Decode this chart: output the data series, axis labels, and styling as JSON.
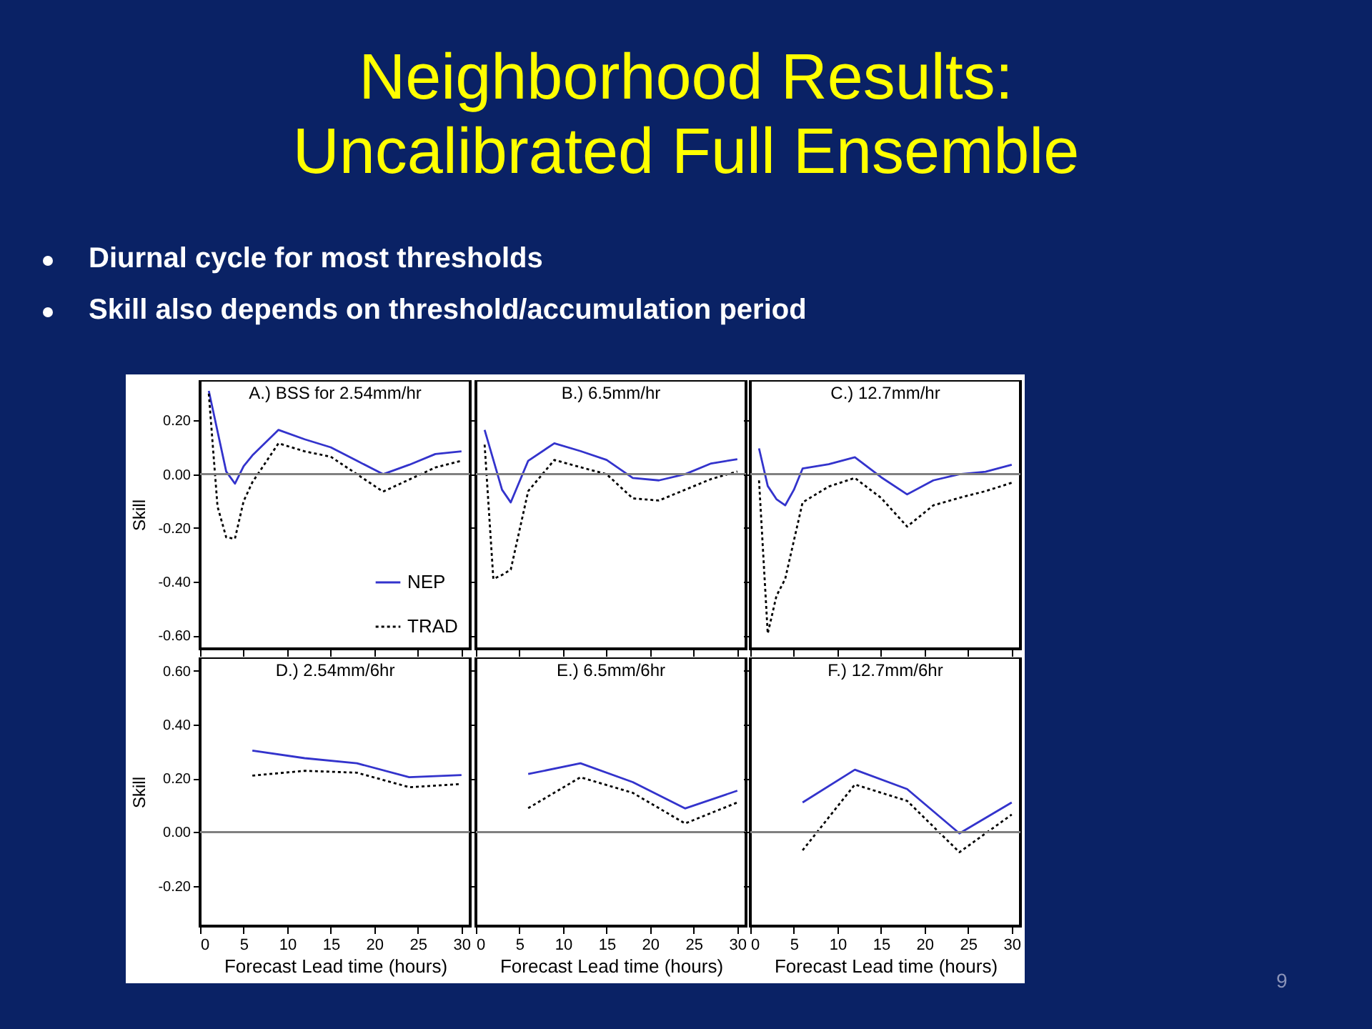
{
  "chart_data": [
    {
      "type": "other",
      "title": "Neighborhood Results: Uncalibrated Full Ensemble",
      "annotations": [
        "Diurnal cycle for most thresholds",
        "Skill also depends on threshold/accumulation period",
        "9"
      ]
    },
    {
      "type": "line",
      "title": "A.) BSS for 2.54mm/hr",
      "ylabel": "Skill",
      "xlim": [
        0,
        31
      ],
      "xticks": [
        0,
        5,
        10,
        15,
        20,
        25,
        30
      ],
      "ylim": [
        -0.65,
        0.35
      ],
      "yticks": [
        {
          "value": -0.6,
          "label": "-0.60"
        },
        {
          "value": -0.4,
          "label": "-0.40"
        },
        {
          "value": -0.2,
          "label": "-0.20"
        },
        {
          "value": 0,
          "label": "0.00"
        },
        {
          "value": 0.2,
          "label": "0.20"
        }
      ],
      "tick_labels": "y",
      "legend": "bottom right",
      "ref_lines": [
        {
          "axis": "y",
          "value": 0,
          "color": "#808080"
        }
      ],
      "series": [
        {
          "name": "NEP",
          "color": "#3333cc",
          "line_style": "solid",
          "x": [
            1,
            3,
            4,
            5,
            6,
            9,
            12,
            15,
            18,
            21,
            24,
            27,
            30
          ],
          "values": [
            0.31,
            0.01,
            -0.035,
            0.03,
            0.07,
            0.165,
            0.13,
            0.1,
            0.05,
            0.0,
            0.035,
            0.075,
            0.085
          ]
        },
        {
          "name": "TRAD",
          "color": "#000000",
          "line_style": "dotted",
          "x": [
            1,
            2,
            3,
            4,
            5,
            6,
            9,
            12,
            15,
            18,
            21,
            24,
            27,
            30
          ],
          "values": [
            0.3,
            -0.12,
            -0.235,
            -0.24,
            -0.1,
            -0.03,
            0.115,
            0.085,
            0.065,
            0.0,
            -0.065,
            -0.02,
            0.025,
            0.05
          ]
        }
      ]
    },
    {
      "type": "line",
      "title": "B.)  6.5mm/hr",
      "xlim": [
        0,
        31
      ],
      "xticks": [
        0,
        5,
        10,
        15,
        20,
        25,
        30
      ],
      "ylim": [
        -0.65,
        0.35
      ],
      "yticks": [
        -0.6,
        -0.4,
        -0.2,
        0,
        0.2
      ],
      "tick_labels": false,
      "ref_lines": [
        {
          "axis": "y",
          "value": 0,
          "color": "#808080"
        }
      ],
      "series": [
        {
          "color": "#3333cc",
          "line_style": "solid",
          "x": [
            1,
            3,
            4,
            6,
            9,
            12,
            15,
            18,
            21,
            24,
            27,
            30
          ],
          "values": [
            0.165,
            -0.058,
            -0.105,
            0.05,
            0.115,
            0.086,
            0.053,
            -0.014,
            -0.023,
            0.0,
            0.04,
            0.056
          ]
        },
        {
          "color": "#000000",
          "line_style": "dotted",
          "x": [
            1,
            2,
            3,
            4,
            6,
            9,
            12,
            15,
            18,
            21,
            24,
            27,
            30
          ],
          "values": [
            0.11,
            -0.39,
            -0.375,
            -0.355,
            -0.063,
            0.053,
            0.026,
            0.0,
            -0.09,
            -0.098,
            -0.058,
            -0.018,
            0.01
          ]
        }
      ]
    },
    {
      "type": "line",
      "title": "C.) 12.7mm/hr",
      "xlim": [
        0,
        31
      ],
      "xticks": [
        0,
        5,
        10,
        15,
        20,
        25,
        30
      ],
      "ylim": [
        -0.65,
        0.35
      ],
      "yticks": [
        -0.6,
        -0.4,
        -0.2,
        0,
        0.2
      ],
      "tick_labels": false,
      "ref_lines": [
        {
          "axis": "y",
          "value": 0,
          "color": "#808080"
        }
      ],
      "series": [
        {
          "color": "#3333cc",
          "line_style": "solid",
          "x": [
            1,
            2,
            3,
            4,
            5,
            6,
            9,
            12,
            15,
            18,
            21,
            24,
            27,
            30
          ],
          "values": [
            0.096,
            -0.044,
            -0.093,
            -0.116,
            -0.058,
            0.021,
            0.037,
            0.063,
            -0.011,
            -0.075,
            -0.023,
            0.0,
            0.009,
            0.035
          ]
        },
        {
          "color": "#000000",
          "line_style": "dotted",
          "x": [
            1,
            2,
            3,
            4,
            6,
            9,
            12,
            15,
            18,
            21,
            24,
            27,
            30
          ],
          "values": [
            -0.023,
            -0.593,
            -0.453,
            -0.39,
            -0.105,
            -0.046,
            -0.014,
            -0.088,
            -0.195,
            -0.116,
            -0.088,
            -0.063,
            -0.032
          ]
        }
      ]
    },
    {
      "type": "line",
      "title": "D.) 2.54mm/6hr",
      "xlabel": "Forecast Lead time (hours)",
      "ylabel": "Skill",
      "xlim": [
        0,
        31
      ],
      "xticks": [
        0,
        5,
        10,
        15,
        20,
        25,
        30
      ],
      "ylim": [
        -0.35,
        0.65
      ],
      "yticks": [
        {
          "value": -0.2,
          "label": "-0.20"
        },
        {
          "value": 0,
          "label": "0.00"
        },
        {
          "value": 0.2,
          "label": "0.20"
        },
        {
          "value": 0.4,
          "label": "0.40"
        },
        {
          "value": 0.6,
          "label": "0.60"
        }
      ],
      "ref_lines": [
        {
          "axis": "y",
          "value": 0,
          "color": "#808080"
        }
      ],
      "series": [
        {
          "color": "#3333cc",
          "line_style": "solid",
          "x": [
            6,
            12,
            18,
            24,
            30
          ],
          "values": [
            0.303,
            0.275,
            0.256,
            0.204,
            0.212
          ]
        },
        {
          "color": "#000000",
          "line_style": "dotted",
          "x": [
            6,
            12,
            18,
            24,
            30
          ],
          "values": [
            0.21,
            0.228,
            0.221,
            0.167,
            0.179
          ]
        }
      ]
    },
    {
      "type": "line",
      "title": "E.) 6.5mm/6hr",
      "xlabel": "Forecast Lead time (hours)",
      "xlim": [
        0,
        31
      ],
      "xticks": [
        0,
        5,
        10,
        15,
        20,
        25,
        30
      ],
      "ylim": [
        -0.35,
        0.65
      ],
      "yticks": [
        -0.2,
        0,
        0.2,
        0.4,
        0.6
      ],
      "tick_labels": "x",
      "ref_lines": [
        {
          "axis": "y",
          "value": 0,
          "color": "#808080"
        }
      ],
      "series": [
        {
          "color": "#3333cc",
          "line_style": "solid",
          "x": [
            6,
            12,
            18,
            24,
            30
          ],
          "values": [
            0.216,
            0.256,
            0.186,
            0.088,
            0.154
          ]
        },
        {
          "color": "#000000",
          "line_style": "dotted",
          "x": [
            6,
            12,
            18,
            24,
            30
          ],
          "values": [
            0.089,
            0.204,
            0.146,
            0.032,
            0.11
          ]
        }
      ]
    },
    {
      "type": "line",
      "title": "F.) 12.7mm/6hr",
      "xlabel": "Forecast Lead time (hours)",
      "xlim": [
        0,
        31
      ],
      "xticks": [
        0,
        5,
        10,
        15,
        20,
        25,
        30
      ],
      "ylim": [
        -0.35,
        0.65
      ],
      "yticks": [
        -0.2,
        0,
        0.2,
        0.4,
        0.6
      ],
      "tick_labels": "x",
      "ref_lines": [
        {
          "axis": "y",
          "value": 0,
          "color": "#808080"
        }
      ],
      "series": [
        {
          "color": "#3333cc",
          "line_style": "solid",
          "x": [
            6,
            12,
            18,
            24,
            30
          ],
          "values": [
            0.11,
            0.232,
            0.16,
            -0.005,
            0.11
          ]
        },
        {
          "color": "#000000",
          "line_style": "dotted",
          "x": [
            6,
            12,
            18,
            24,
            30
          ],
          "values": [
            -0.068,
            0.177,
            0.116,
            -0.075,
            0.065
          ]
        }
      ]
    }
  ]
}
